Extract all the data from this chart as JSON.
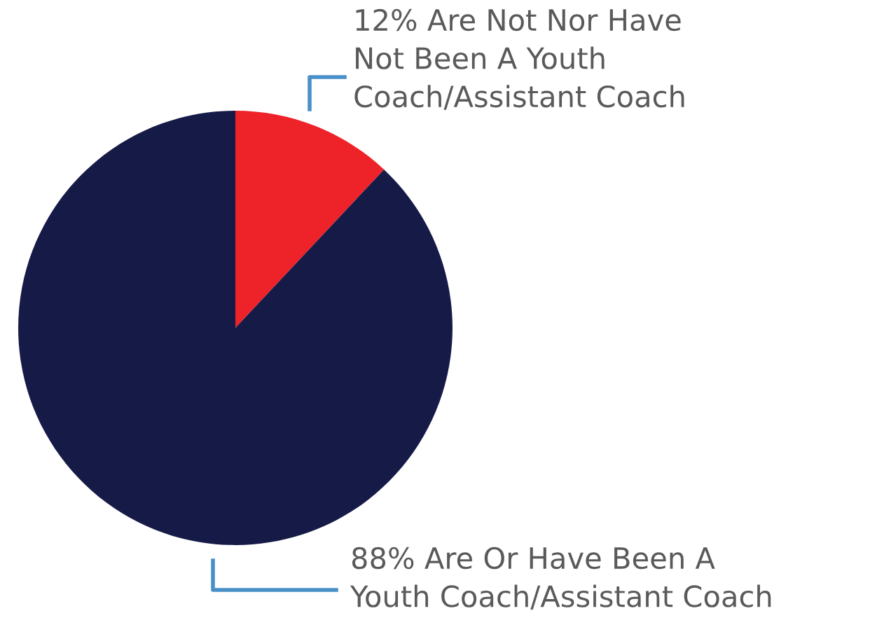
{
  "chart_data": {
    "type": "pie",
    "categories": [
      "12% Are Not Nor Have\nNot Been A Youth\nCoach/Assistant Coach",
      "88% Are Or Have Been A\nYouth Coach/Assistant Coach"
    ],
    "values": [
      12,
      88
    ],
    "colors": [
      "#ee2229",
      "#161a47"
    ]
  }
}
